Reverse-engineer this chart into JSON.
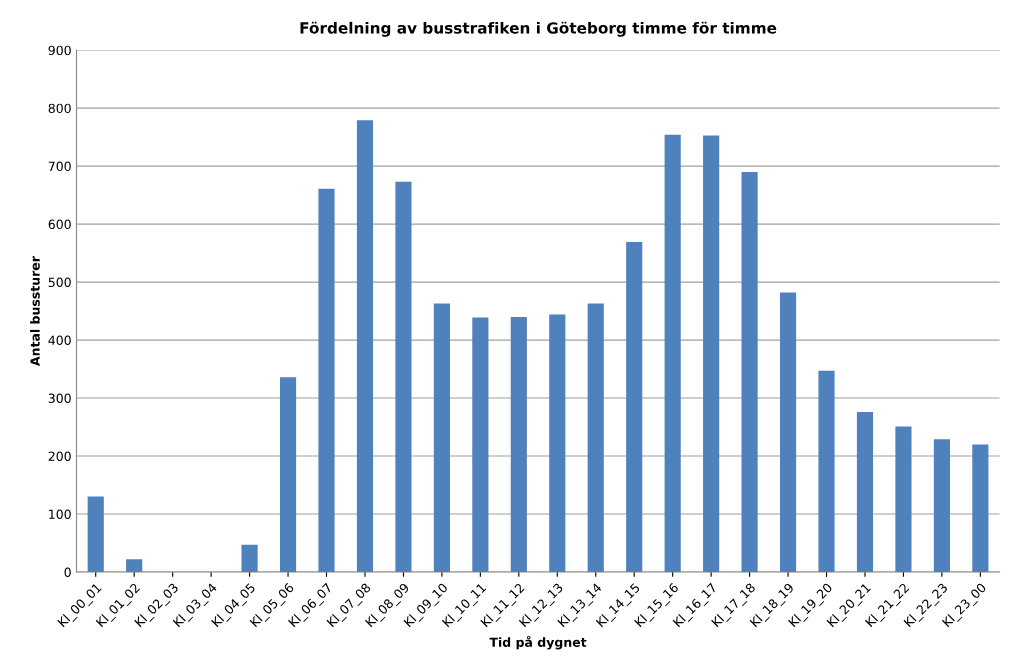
{
  "chart_data": {
    "type": "bar",
    "title": "Fördelning av busstrafiken i Göteborg timme för timme",
    "xlabel": "Tid på dygnet",
    "ylabel": "Antal bussturer",
    "categories": [
      "Kl_00_01",
      "Kl_01_02",
      "Kl_02_03",
      "Kl_03_04",
      "Kl_04_05",
      "Kl_05_06",
      "Kl_06_07",
      "Kl_07_08",
      "Kl_08_09",
      "Kl_09_10",
      "Kl_10_11",
      "Kl_11_12",
      "Kl_12_13",
      "Kl_13_14",
      "Kl_14_15",
      "Kl_15_16",
      "Kl_16_17",
      "Kl_17_18",
      "Kl_18_19",
      "Kl_19_20",
      "Kl_20_21",
      "Kl_21_22",
      "Kl_22_23",
      "Kl_23_00"
    ],
    "values": [
      130,
      22,
      0,
      0,
      47,
      336,
      661,
      779,
      673,
      463,
      439,
      440,
      444,
      463,
      569,
      754,
      753,
      690,
      482,
      347,
      276,
      251,
      229,
      220
    ],
    "color": "#4f81bd",
    "ylim": [
      0,
      900
    ],
    "yticks": [
      0,
      100,
      200,
      300,
      400,
      500,
      600,
      700,
      800,
      900
    ],
    "grid": "y",
    "legend": false
  }
}
